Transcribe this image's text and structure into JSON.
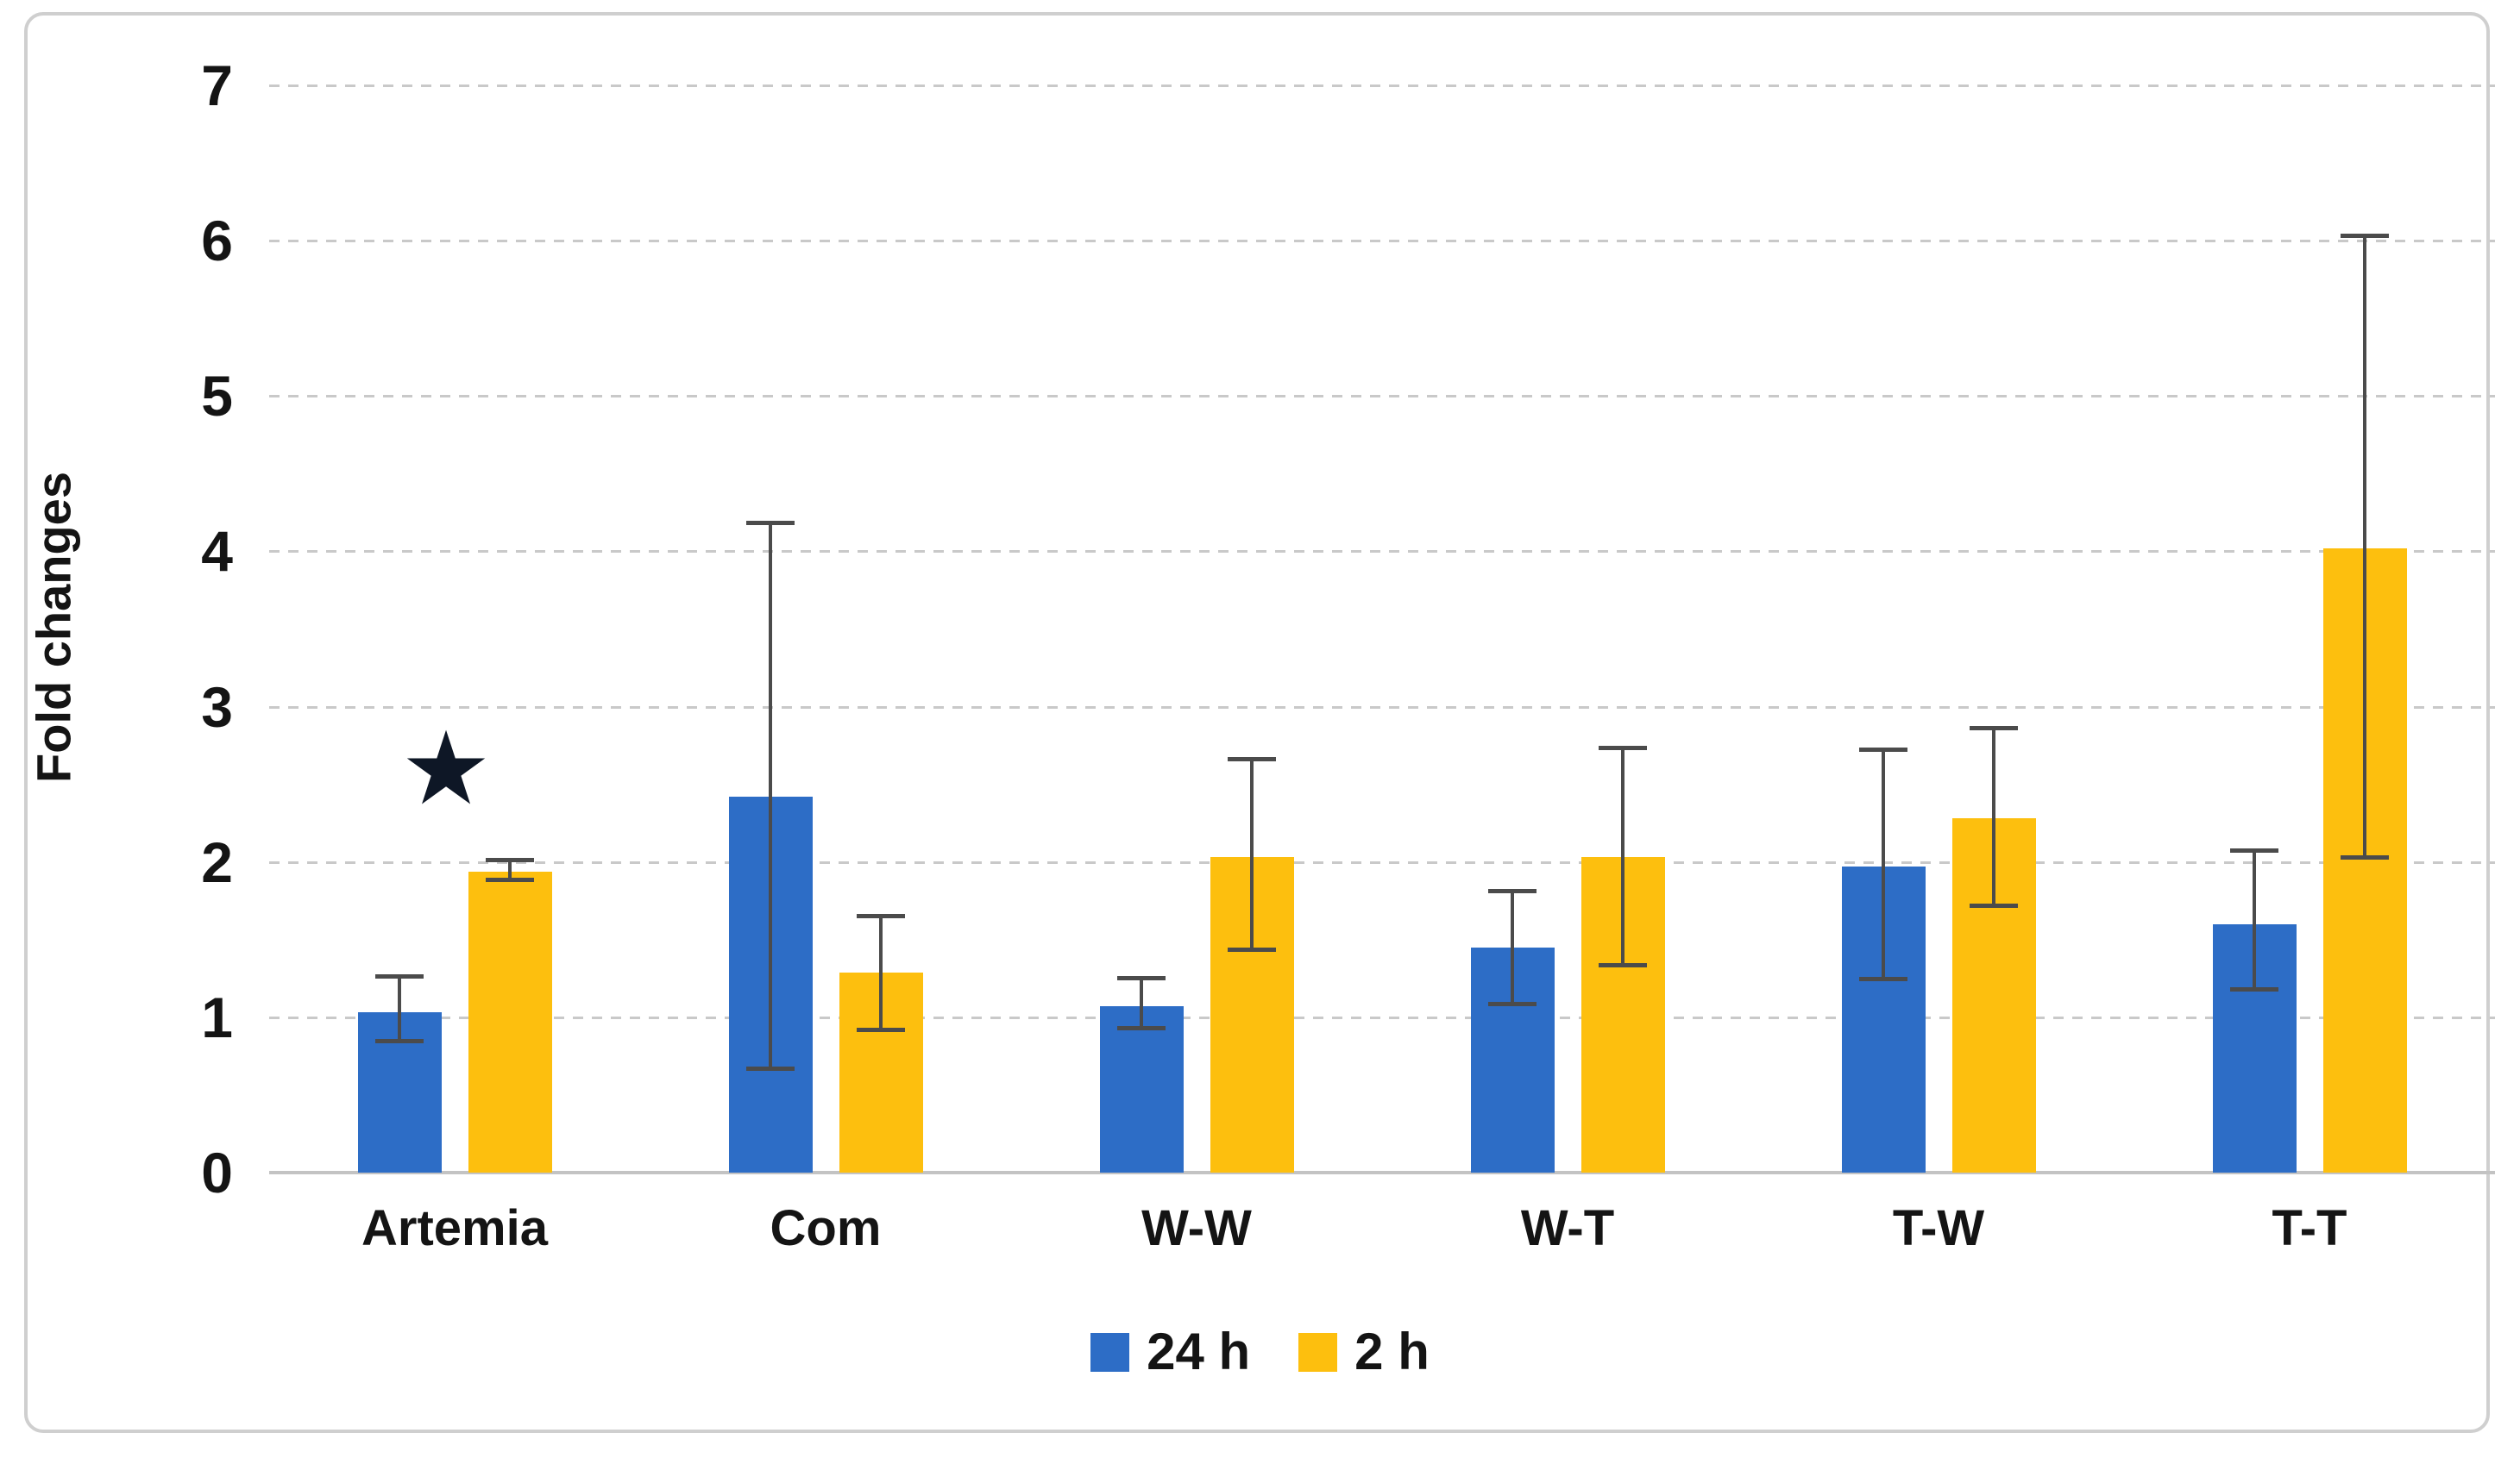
{
  "figure": {
    "background": "#ffffff",
    "border_color": "#cfcfcf"
  },
  "chart_data": {
    "type": "bar",
    "title": "",
    "xlabel": "",
    "ylabel": "Fold changes",
    "ylim": [
      0,
      7
    ],
    "yticks": [
      0,
      1,
      2,
      3,
      4,
      5,
      6,
      7
    ],
    "grid": "horizontal-dashed",
    "gridline_color": "#c9c9c9",
    "axis_line_color": "#c3c3c3",
    "tick_label_color": "#141414",
    "error_bar_color": "#4b4b4b",
    "legend_position": "bottom-center",
    "categories": [
      "Artemia",
      "Com",
      "W-W",
      "W-T",
      "T-W",
      "T-T"
    ],
    "series": [
      {
        "name": "24 h",
        "color": "#2d6dc6",
        "values": [
          1.03,
          2.42,
          1.07,
          1.45,
          1.97,
          1.6
        ],
        "error_low": [
          0.85,
          0.67,
          0.93,
          1.09,
          1.25,
          1.18
        ],
        "error_high": [
          1.26,
          4.18,
          1.25,
          1.81,
          2.72,
          2.07
        ]
      },
      {
        "name": "2 h",
        "color": "#fdbf0e",
        "values": [
          1.94,
          1.29,
          2.03,
          2.03,
          2.28,
          4.02
        ],
        "error_low": [
          1.89,
          0.92,
          1.44,
          1.34,
          1.72,
          2.03
        ],
        "error_high": [
          2.01,
          1.65,
          2.66,
          2.73,
          2.86,
          6.03
        ]
      }
    ],
    "annotations": [
      {
        "type": "star",
        "symbol": "★",
        "category": "Artemia",
        "value": 2.6,
        "x_offset": -10,
        "color": "#0e1726"
      }
    ]
  }
}
